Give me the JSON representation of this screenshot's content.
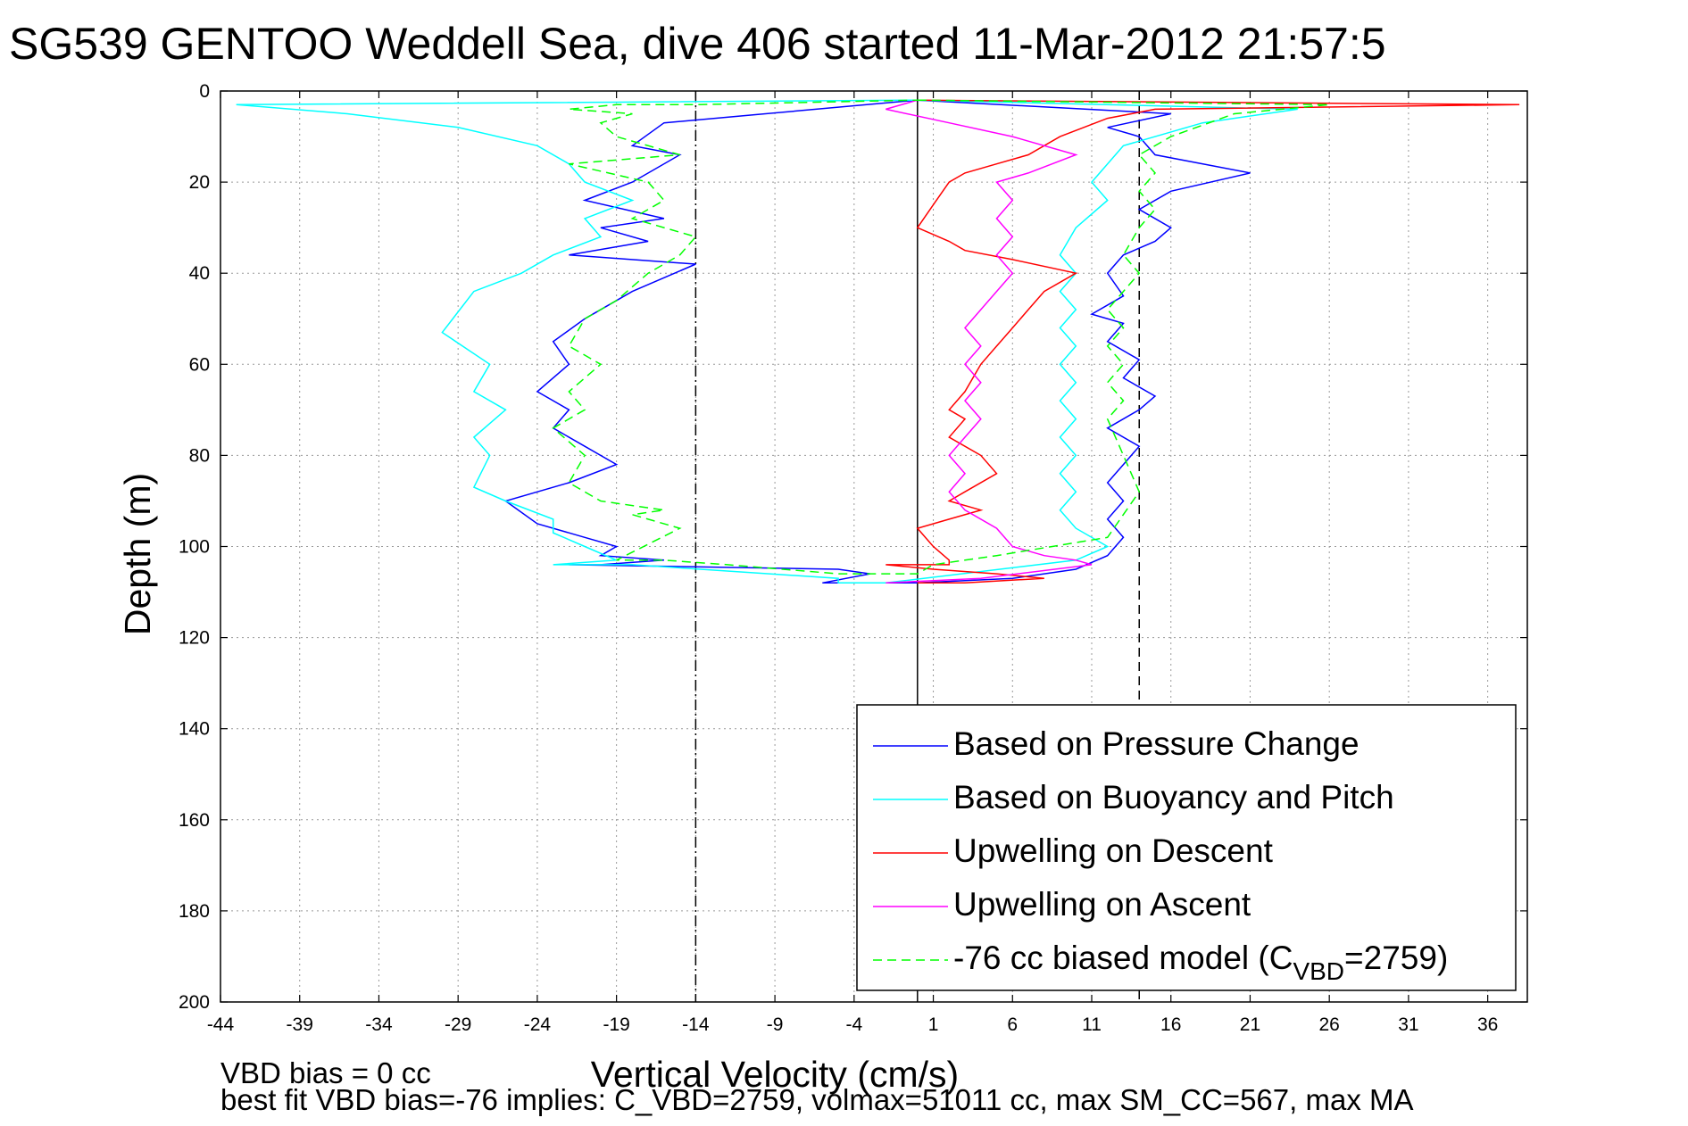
{
  "chart_data": {
    "type": "line",
    "title": "SG539 GENTOO Weddell Sea, dive 406 started 11-Mar-2012 21:57:5",
    "xlabel": "Vertical Velocity (cm/s)",
    "ylabel": "Depth (m)",
    "xlim": [
      -44,
      38.5
    ],
    "ylim": [
      0,
      200
    ],
    "y_reversed": true,
    "grid": true,
    "xticks": [
      -44,
      -39,
      -34,
      -29,
      -24,
      -19,
      -14,
      -9,
      -4,
      1,
      6,
      11,
      16,
      21,
      26,
      31,
      36
    ],
    "yticks": [
      0,
      20,
      40,
      60,
      80,
      100,
      120,
      140,
      160,
      180,
      200
    ],
    "xtick_labels": [
      "-44",
      "-39",
      "-34",
      "-29",
      "-24",
      "-19",
      "-14",
      "-9",
      "-4",
      "1",
      "6",
      "11",
      "16",
      "21",
      "26",
      "31",
      "36"
    ],
    "ytick_labels": [
      "0",
      "20",
      "40",
      "60",
      "80",
      "100",
      "120",
      "140",
      "160",
      "180",
      "200"
    ],
    "legend_position": "bottom-right",
    "legend": {
      "items": [
        {
          "label": "Based on Pressure Change",
          "color": "#0000ff",
          "dash": "solid"
        },
        {
          "label": "Based on Buoyancy and Pitch",
          "color": "#00ffff",
          "dash": "solid"
        },
        {
          "label": "Upwelling on Descent",
          "color": "#ff0000",
          "dash": "solid"
        },
        {
          "label": "Upwelling on Ascent",
          "color": "#ff00ff",
          "dash": "solid"
        },
        {
          "label_prefix": "-76 cc biased model (C",
          "label_sub": "VBD",
          "label_suffix": "=2759)",
          "color": "#00ff00",
          "dash": "dashed"
        }
      ]
    },
    "reference_lines": [
      {
        "x": -14.0,
        "style": "dashdot",
        "color": "#000000"
      },
      {
        "x": 0.0,
        "style": "solid",
        "color": "#000000"
      },
      {
        "x": 14.0,
        "style": "dashed",
        "color": "#000000"
      }
    ],
    "series": [
      {
        "name": "Based on Pressure Change",
        "color": "#0000ff",
        "dash": "solid",
        "x": [
          0,
          -16,
          -18,
          -15,
          -18,
          -21,
          -16,
          -20,
          -17,
          -22,
          -14,
          -18,
          -21,
          -23,
          -22,
          -24,
          -22,
          -23,
          -21,
          -19,
          -22,
          -26,
          -24,
          -21,
          -19,
          -20,
          -16,
          -20,
          -22,
          -5,
          -3,
          -6,
          0,
          6,
          10,
          12,
          13,
          12,
          13,
          12,
          13,
          14,
          12,
          14,
          15,
          13,
          14,
          12,
          13,
          11,
          13,
          12,
          13,
          15,
          16,
          14,
          16,
          21,
          15,
          14,
          12,
          16,
          0
        ],
        "y": [
          2,
          7,
          12,
          14,
          20,
          24,
          28,
          30,
          33,
          36,
          38,
          44,
          50,
          55,
          60,
          66,
          70,
          74,
          78,
          82,
          86,
          90,
          95,
          98,
          100,
          102,
          103,
          104,
          104,
          105,
          106,
          108,
          108,
          107,
          105,
          102,
          98,
          94,
          90,
          86,
          82,
          78,
          74,
          70,
          67,
          63,
          59,
          55,
          51,
          49,
          45,
          40,
          36,
          33,
          30,
          26,
          22,
          18,
          14,
          10,
          8,
          5,
          2
        ]
      },
      {
        "name": "Based on Buoyancy and Pitch",
        "color": "#00ffff",
        "dash": "solid",
        "x": [
          0,
          -43,
          -36,
          -29,
          -24,
          -22,
          -21,
          -18,
          -21,
          -20,
          -23,
          -25,
          -28,
          -30,
          -27,
          -28,
          -26,
          -28,
          -27,
          -28,
          -26,
          -23,
          -23,
          -21,
          -19,
          -23,
          -23,
          -18,
          -5,
          -5,
          -2,
          10,
          12,
          10,
          9,
          10,
          9,
          10,
          9,
          10,
          9,
          10,
          9,
          10,
          9,
          10,
          9,
          10,
          9,
          10,
          12,
          11,
          13,
          18,
          24,
          0
        ],
        "y": [
          2,
          3,
          5,
          8,
          12,
          16,
          20,
          24,
          28,
          32,
          36,
          40,
          44,
          53,
          60,
          66,
          70,
          76,
          80,
          87,
          90,
          94,
          97,
          100,
          103,
          104,
          104,
          104,
          107,
          108,
          108,
          103,
          100,
          96,
          92,
          88,
          84,
          80,
          76,
          72,
          68,
          64,
          60,
          56,
          52,
          48,
          44,
          40,
          36,
          30,
          24,
          20,
          12,
          7,
          4,
          2
        ]
      },
      {
        "name": "Upwelling on Descent",
        "color": "#ff0000",
        "dash": "solid",
        "x": [
          0,
          38,
          15,
          12,
          9,
          7,
          5,
          3,
          2,
          1,
          0,
          2,
          3,
          6,
          10,
          8,
          7,
          6,
          5,
          4,
          3,
          2,
          3,
          2,
          4,
          5,
          3,
          2,
          4,
          2,
          0,
          1,
          2,
          2,
          -2,
          1,
          5,
          8,
          3,
          0
        ],
        "y": [
          2,
          3,
          4,
          6,
          10,
          14,
          16,
          18,
          20,
          25,
          30,
          33,
          35,
          37,
          40,
          44,
          48,
          52,
          56,
          60,
          66,
          70,
          72,
          76,
          80,
          84,
          88,
          90,
          92,
          94,
          96,
          100,
          103,
          104,
          104,
          105,
          106,
          107,
          108,
          108
        ]
      },
      {
        "name": "Upwelling on Ascent",
        "color": "#ff00ff",
        "dash": "solid",
        "x": [
          0,
          -2,
          2,
          6,
          10,
          7,
          5,
          6,
          5,
          6,
          5,
          6,
          5,
          4,
          3,
          4,
          3,
          4,
          3,
          4,
          3,
          2,
          3,
          2,
          3,
          5,
          6,
          8,
          10,
          11,
          4,
          -2
        ],
        "y": [
          2,
          4,
          7,
          10,
          14,
          18,
          20,
          24,
          28,
          32,
          36,
          40,
          44,
          48,
          52,
          56,
          60,
          64,
          68,
          72,
          76,
          80,
          84,
          88,
          92,
          96,
          100,
          102,
          103,
          104,
          107,
          108
        ]
      },
      {
        "name": "-76 cc biased model (C_VBD=2759)",
        "color": "#00ff00",
        "dash": "dashed",
        "x": [
          0,
          26,
          20,
          16,
          14,
          15,
          14,
          15,
          14,
          13,
          14,
          13,
          12,
          13,
          12,
          13,
          12,
          13,
          12,
          13,
          14,
          12,
          5,
          1,
          0,
          -5,
          -12,
          -16,
          -19,
          -15,
          -18,
          -16,
          -20,
          -22,
          -21,
          -23,
          -21,
          -22,
          -20,
          -22,
          -21,
          -19,
          -17,
          -15,
          -14,
          -18,
          -16,
          -17,
          -22,
          -15,
          -19,
          -20,
          -18,
          -22,
          -19,
          -14,
          0
        ],
        "y": [
          2,
          3,
          5,
          10,
          14,
          18,
          22,
          26,
          30,
          36,
          40,
          44,
          48,
          52,
          56,
          60,
          64,
          68,
          72,
          80,
          88,
          98,
          102,
          104,
          106,
          106,
          104,
          103,
          103,
          96,
          93,
          92,
          90,
          86,
          80,
          74,
          70,
          66,
          60,
          56,
          50,
          46,
          40,
          36,
          32,
          28,
          24,
          20,
          16,
          14,
          10,
          7,
          5,
          4,
          3,
          3,
          2
        ]
      }
    ]
  },
  "footer": {
    "line1": "VBD bias = 0 cc",
    "line2": "best fit VBD bias=-76 implies: C_VBD=2759, volmax=51011 cc, max SM_CC=567, max MA"
  }
}
